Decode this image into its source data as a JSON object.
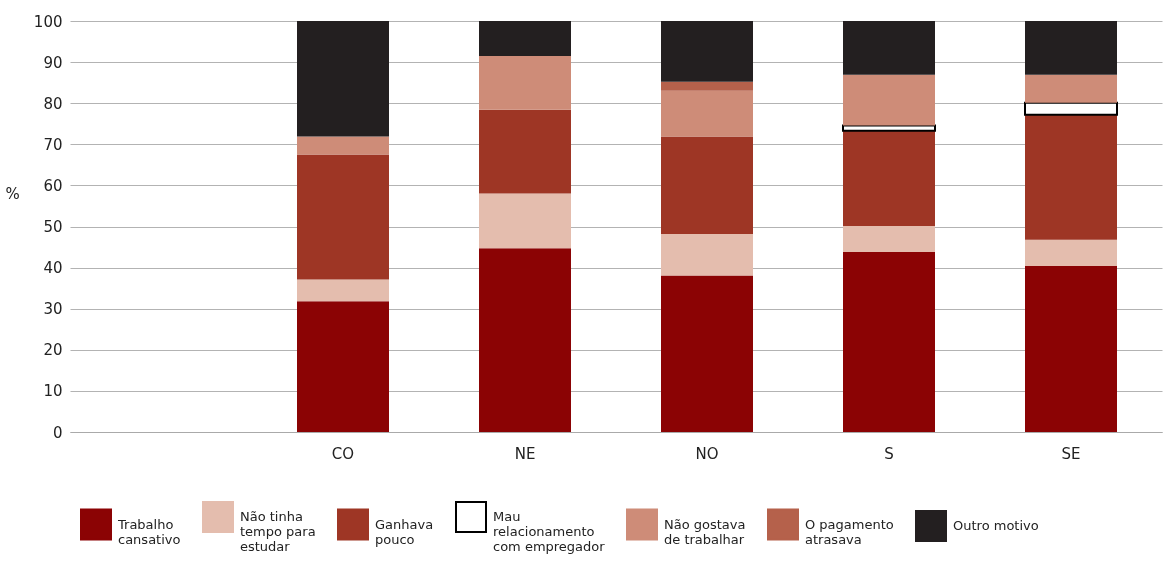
{
  "chart_data": {
    "type": "bar",
    "stacked": true,
    "ylabel": "%",
    "categories": [
      null,
      "CO",
      "NE",
      "NO",
      "S",
      "SE"
    ],
    "ylim": [
      0,
      100
    ],
    "yticks": [
      0,
      10,
      20,
      30,
      40,
      50,
      60,
      70,
      80,
      90,
      100
    ],
    "grid": "y",
    "legend": "bottom",
    "series": [
      {
        "name": "Trabalho\ncansativo",
        "color": "#8b0304",
        "values": [
          null,
          31.8,
          44.7,
          38.1,
          43.8,
          40.4
        ]
      },
      {
        "name": "Não tinha\ntempo para\nestudar",
        "color": "#e4bdae",
        "values": [
          null,
          5.3,
          13.3,
          10.1,
          6.3,
          6.4
        ]
      },
      {
        "name": "Ganhava\npouco",
        "color": "#9e3625",
        "values": [
          null,
          30.4,
          20.4,
          23.7,
          23.2,
          30.4
        ]
      },
      {
        "name": "Mau\nrelacionamento\ncom empregador",
        "color": "#ffffff",
        "values": [
          null,
          0,
          0,
          0,
          1.3,
          2.9
        ]
      },
      {
        "name": "Não gostava\nde trabalhar",
        "color": "#ce8c78",
        "values": [
          null,
          4.4,
          13.1,
          11.1,
          12.3,
          6.8
        ]
      },
      {
        "name": "O pagamento\natrasava",
        "color": "#b5614b",
        "values": [
          null,
          0,
          0,
          2.2,
          0,
          0
        ]
      },
      {
        "name": "Outro motivo",
        "color": "#231f20",
        "values": [
          null,
          28.1,
          8.5,
          14.8,
          13.1,
          13.1
        ]
      }
    ]
  }
}
